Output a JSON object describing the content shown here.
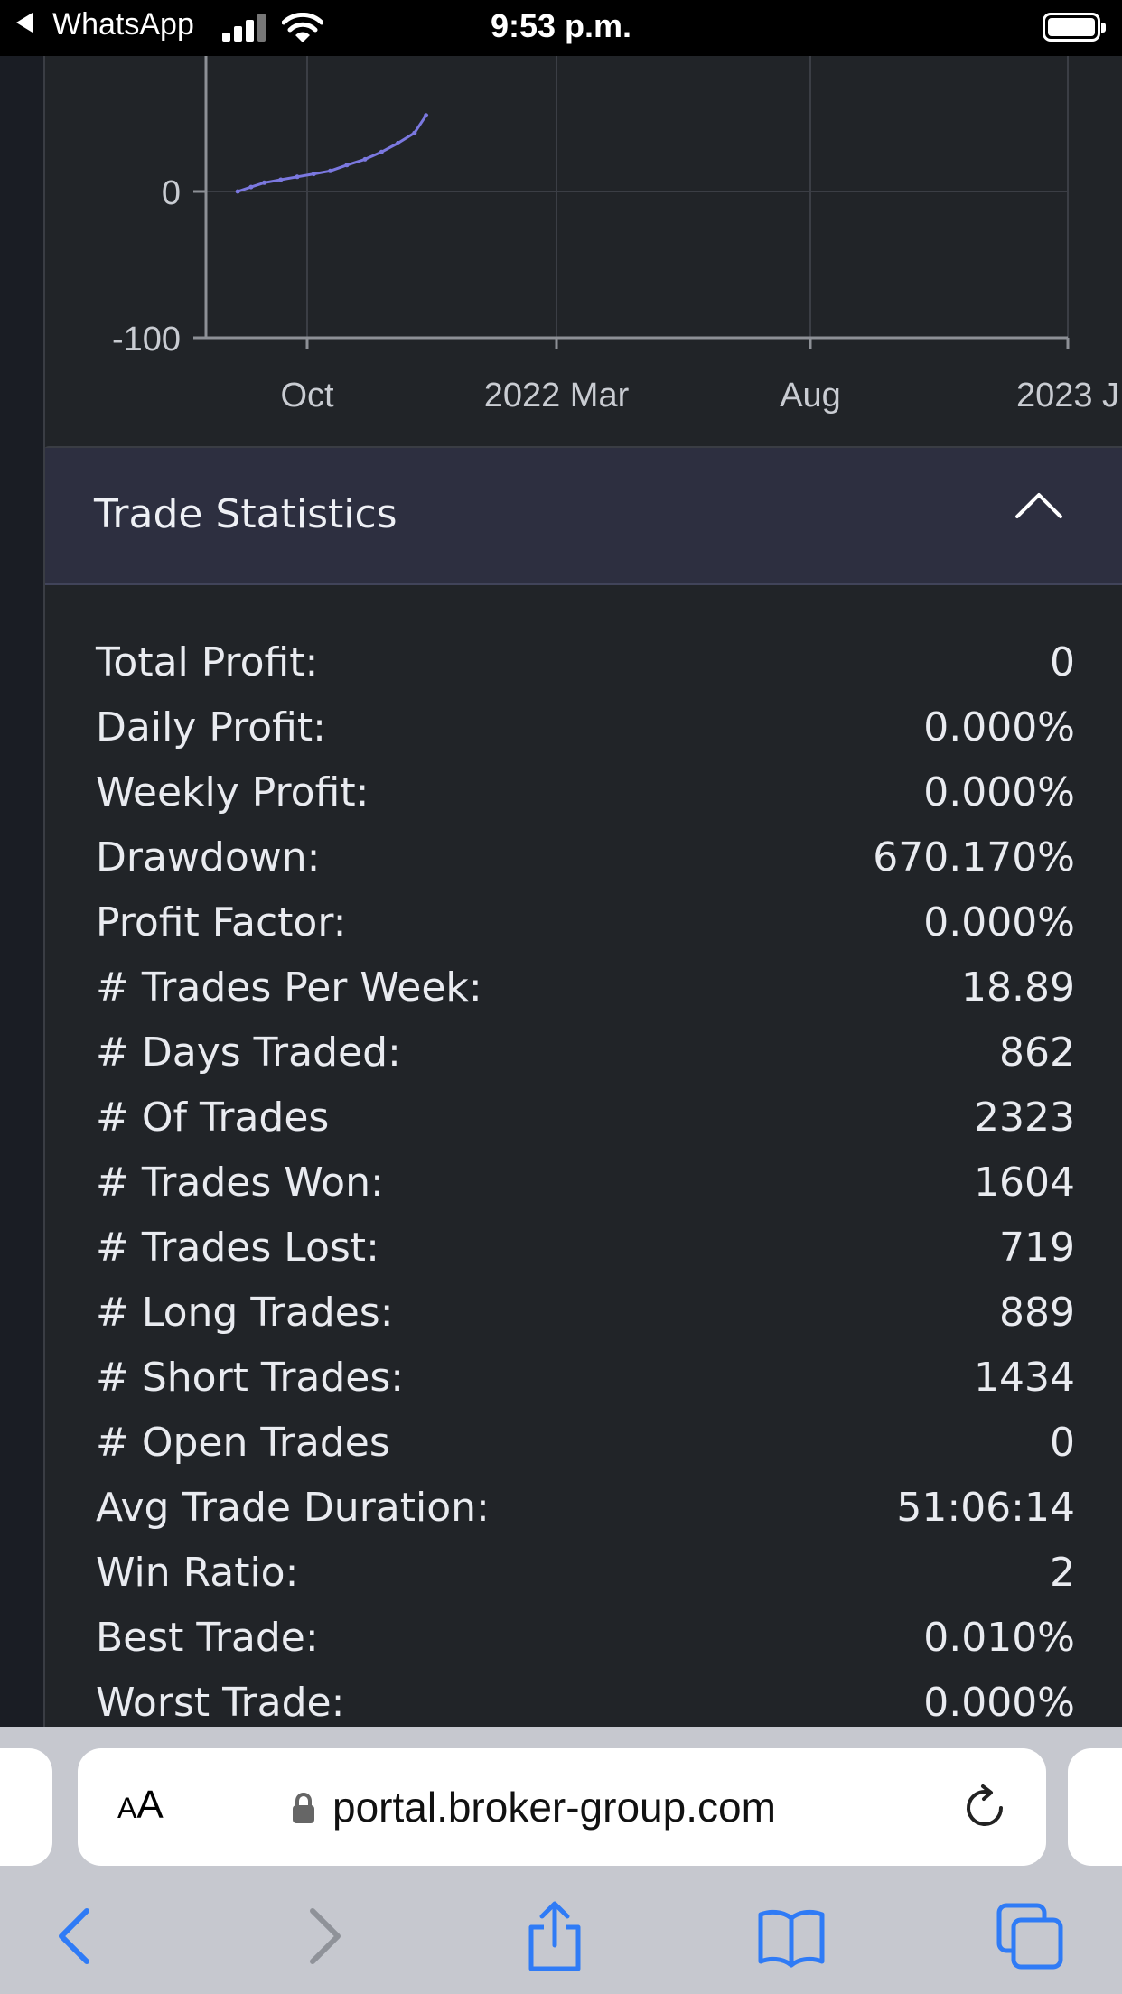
{
  "status_bar": {
    "back_app": "WhatsApp",
    "time": "9:53 p.m."
  },
  "chart_data": {
    "type": "line",
    "x_tick_labels": [
      "Oct",
      "2022 Mar",
      "Aug",
      "2023 J"
    ],
    "y_tick_labels": [
      "0",
      "-100"
    ],
    "series": [
      {
        "color": "#7b78e0",
        "x": [
          "2021-08-20",
          "2021-08-28",
          "2021-09-05",
          "2021-09-15",
          "2021-09-25",
          "2021-10-05",
          "2021-10-15",
          "2021-10-25",
          "2021-11-05",
          "2021-11-15",
          "2021-11-25",
          "2021-12-05",
          "2021-12-12"
        ],
        "y": [
          0,
          3,
          6,
          8,
          10,
          12,
          14,
          18,
          22,
          27,
          33,
          40,
          52
        ]
      }
    ],
    "grid": true
  },
  "stats": {
    "title": "Trade Statistics",
    "rows": [
      {
        "label": "Total Profit:",
        "value": "0"
      },
      {
        "label": "Daily Profit:",
        "value": "0.000%"
      },
      {
        "label": "Weekly Profit:",
        "value": "0.000%"
      },
      {
        "label": "Drawdown:",
        "value": "670.170%"
      },
      {
        "label": "Profit Factor:",
        "value": "0.000%"
      },
      {
        "label": "# Trades Per Week:",
        "value": "18.89"
      },
      {
        "label": "# Days Traded:",
        "value": "862"
      },
      {
        "label": "# Of Trades",
        "value": "2323"
      },
      {
        "label": "# Trades Won:",
        "value": "1604"
      },
      {
        "label": "# Trades Lost:",
        "value": "719"
      },
      {
        "label": "# Long Trades:",
        "value": "889"
      },
      {
        "label": "# Short Trades:",
        "value": "1434"
      },
      {
        "label": "# Open Trades",
        "value": "0"
      },
      {
        "label": "Avg Trade Duration:",
        "value": "51:06:14"
      },
      {
        "label": "Win Ratio:",
        "value": "2"
      },
      {
        "label": "Best Trade:",
        "value": "0.010%"
      },
      {
        "label": "Worst Trade:",
        "value": "0.000%"
      }
    ]
  },
  "browser": {
    "text_size_big": "A",
    "text_size_small": "A",
    "url": "portal.broker-group.com"
  },
  "colors": {
    "accent": "#2f7bf6",
    "line": "#7b78e0"
  }
}
